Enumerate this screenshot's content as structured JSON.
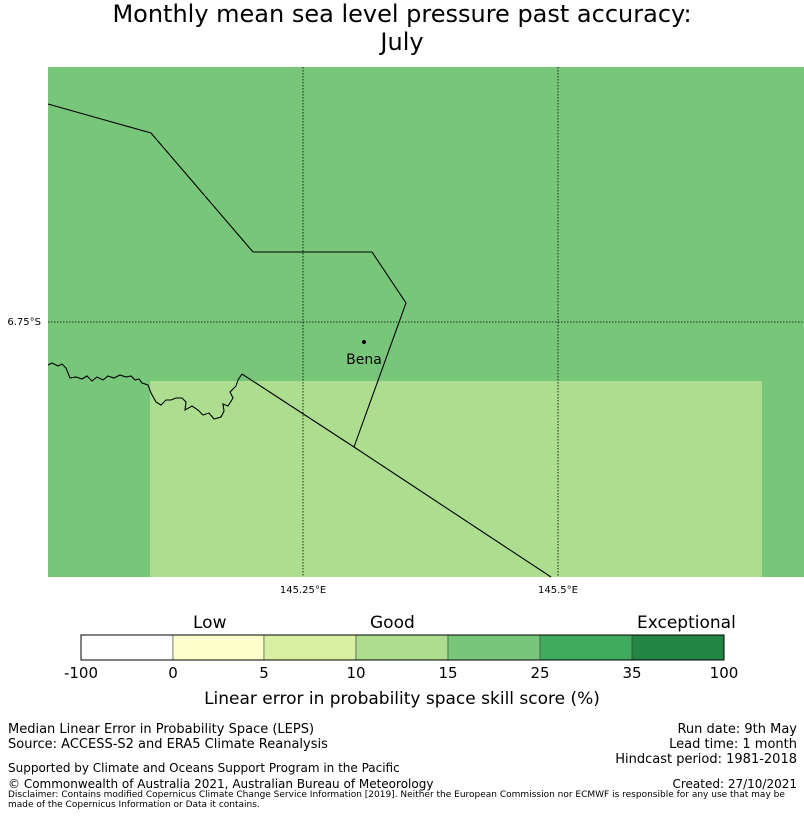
{
  "title": {
    "line1": "Monthly mean sea level pressure past accuracy:",
    "line2": "July"
  },
  "map": {
    "lon_labels": [
      "145.25°E",
      "145.5°E"
    ],
    "lat_labels": [
      "6.75°S"
    ],
    "place": {
      "name": "Bena"
    },
    "colors": {
      "region_25_35": "#78c679",
      "region_15_25": "#addd8e",
      "border": "#000000",
      "gridline": "#000000"
    }
  },
  "colorbar": {
    "category_labels": [
      "Low",
      "Good",
      "Exceptional"
    ],
    "ticks": [
      "-100",
      "0",
      "5",
      "10",
      "15",
      "25",
      "35",
      "100"
    ],
    "colors": [
      "#ffffff",
      "#ffffcc",
      "#d9f0a3",
      "#addd8e",
      "#78c679",
      "#41ab5d",
      "#238443"
    ],
    "title": "Linear error in probability space skill score (%)"
  },
  "footer": {
    "left": [
      "Median Linear Error in Probability Space (LEPS)",
      "Source: ACCESS-S2 and ERA5 Climate Reanalysis"
    ],
    "right": [
      "Run date: 9th May",
      "Lead time: 1 month",
      "Hindcast period: 1981-2018"
    ],
    "supported": "Supported by Climate and Oceans Support Program in the Pacific",
    "copyright": "© Commonwealth of Australia 2021, Australian Bureau of Meteorology",
    "created": "Created: 27/10/2021",
    "disclaimer": "Disclaimer: Contains modified Copernicus Climate Change Service Information [2019]. Neither the European Commission nor ECMWF is responsible for any use that may be made of the Copernicus Information or Data it contains."
  }
}
